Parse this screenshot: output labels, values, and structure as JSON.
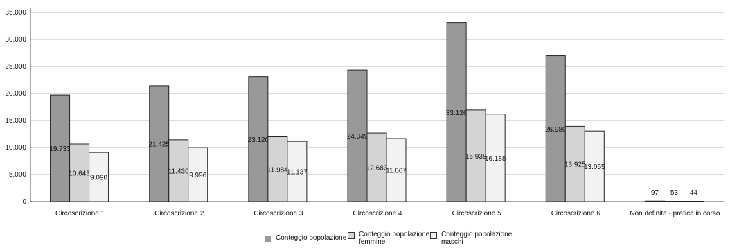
{
  "chart_data": {
    "type": "bar",
    "title": "",
    "xlabel": "",
    "ylabel": "",
    "ylim": [
      0,
      35000
    ],
    "yticks": [
      0,
      5000,
      10000,
      15000,
      20000,
      25000,
      30000,
      35000
    ],
    "ytick_labels": [
      "0",
      "5.000",
      "10.000",
      "15.000",
      "20.000",
      "25.000",
      "30.000",
      "35.000"
    ],
    "grid": true,
    "legend_position": "bottom",
    "categories": [
      "Circoscrizione 1",
      "Circoscrizione 2",
      "Circoscrizione 3",
      "Circoscrizione 4",
      "Circoscrizione 5",
      "Circoscrizione 6",
      "Non definita - pratica in corso"
    ],
    "series": [
      {
        "name": "Conteggio popolazione",
        "color": "#999999",
        "values": [
          19733,
          21425,
          23120,
          24349,
          33126,
          26980,
          97
        ],
        "labels": [
          "19.733",
          "21.425",
          "23.120",
          "24.349",
          "33.126",
          "26.980",
          "97"
        ]
      },
      {
        "name": "Conteggio popolazione femmine",
        "color": "#d4d4d4",
        "values": [
          10643,
          11430,
          11984,
          12683,
          16938,
          13925,
          53
        ],
        "labels": [
          "10.643",
          "11.430",
          "11.984",
          "12.683",
          "16.938",
          "13.925",
          "53"
        ]
      },
      {
        "name": "Conteggio popolazione maschi",
        "color": "#f2f2f2",
        "values": [
          9090,
          9996,
          11137,
          11667,
          16188,
          13055,
          44
        ],
        "labels": [
          "9.090",
          "9.996",
          "11.137",
          "11.667",
          "16.188",
          "13.055",
          "44"
        ]
      }
    ]
  },
  "legend": {
    "items": [
      {
        "line1": "Conteggio popolazione",
        "line2": ""
      },
      {
        "line1": "Conteggio popolazione",
        "line2": "femmine"
      },
      {
        "line1": "Conteggio popolazione",
        "line2": "maschi"
      }
    ]
  }
}
